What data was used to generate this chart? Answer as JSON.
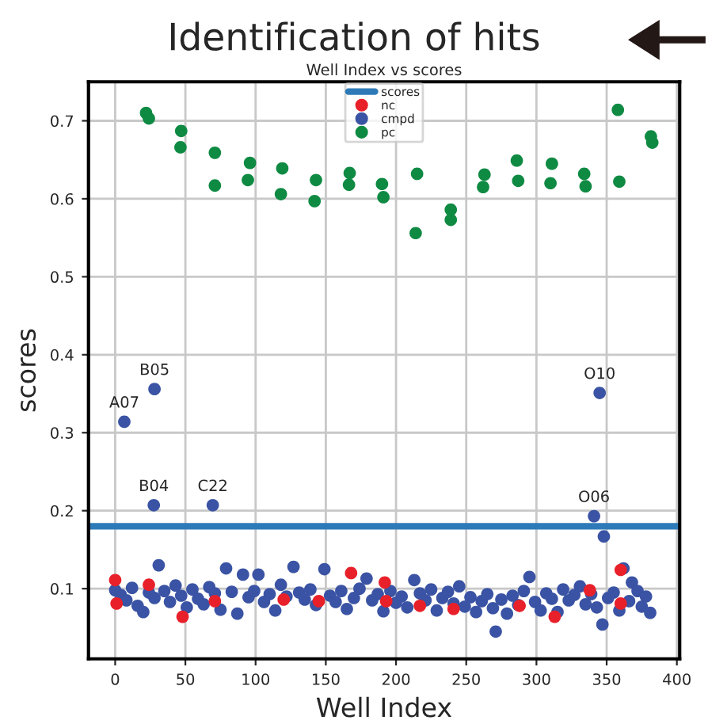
{
  "chart_data": {
    "type": "scatter",
    "title": "Identification of hits",
    "subtitle": "Well Index vs scores",
    "xlabel": "Well Index",
    "ylabel": "scores",
    "xlim": [
      -19,
      402
    ],
    "ylim": [
      0.01,
      0.75
    ],
    "xticks": [
      0,
      50,
      100,
      150,
      200,
      250,
      300,
      350,
      400
    ],
    "yticks": [
      0.1,
      0.2,
      0.3,
      0.4,
      0.5,
      0.6,
      0.7
    ],
    "grid": true,
    "legend": "top",
    "marker": "circle",
    "series": [
      {
        "name": "scores",
        "type": "line",
        "marker": "none",
        "color": "#2e7ab8",
        "x": [
          -19,
          402
        ],
        "values": [
          0.18,
          0.18
        ]
      },
      {
        "name": "nc",
        "color": "#e8202a",
        "x": [
          0,
          1,
          24,
          48,
          71,
          120,
          145,
          168,
          192,
          193,
          217,
          241,
          288,
          313,
          338,
          360,
          360
        ],
        "values": [
          0.111,
          0.081,
          0.105,
          0.064,
          0.084,
          0.086,
          0.084,
          0.12,
          0.108,
          0.084,
          0.078,
          0.074,
          0.078,
          0.064,
          0.098,
          0.081,
          0.124
        ]
      },
      {
        "name": "cmpd",
        "color": "#3a53a4",
        "x": [
          6.5,
          28,
          27.5,
          69.5,
          345,
          341,
          348,
          0,
          4,
          8,
          12,
          16,
          20,
          24,
          28,
          31,
          35,
          39,
          43,
          47,
          51,
          55,
          59,
          63,
          67,
          71,
          75,
          79,
          83,
          87,
          91,
          95,
          99,
          102,
          106,
          110,
          114,
          118,
          122,
          127,
          131,
          135,
          139,
          143,
          149,
          153,
          157,
          161,
          165,
          170,
          174,
          179,
          183,
          187,
          191,
          196,
          200,
          204,
          208,
          213,
          217,
          221,
          225,
          229,
          233,
          237,
          241,
          245,
          249,
          253,
          257,
          261,
          265,
          269,
          271,
          275,
          279,
          283,
          287,
          291,
          295,
          299,
          303,
          307,
          311,
          315,
          319,
          323,
          327,
          331,
          335,
          339,
          343,
          347,
          351,
          355,
          359,
          362,
          366,
          368,
          372,
          375,
          378,
          381
        ],
        "values": [
          0.314,
          0.356,
          0.207,
          0.207,
          0.351,
          0.193,
          0.167,
          0.098,
          0.092,
          0.085,
          0.101,
          0.078,
          0.07,
          0.095,
          0.088,
          0.13,
          0.097,
          0.083,
          0.104,
          0.091,
          0.076,
          0.099,
          0.087,
          0.08,
          0.102,
          0.094,
          0.073,
          0.126,
          0.096,
          0.068,
          0.118,
          0.089,
          0.097,
          0.118,
          0.083,
          0.093,
          0.072,
          0.105,
          0.09,
          0.128,
          0.095,
          0.086,
          0.099,
          0.079,
          0.125,
          0.091,
          0.083,
          0.097,
          0.074,
          0.088,
          0.1,
          0.113,
          0.085,
          0.093,
          0.071,
          0.097,
          0.082,
          0.09,
          0.076,
          0.111,
          0.094,
          0.085,
          0.099,
          0.072,
          0.088,
          0.096,
          0.081,
          0.103,
          0.077,
          0.089,
          0.07,
          0.084,
          0.093,
          0.075,
          0.045,
          0.086,
          0.068,
          0.091,
          0.079,
          0.097,
          0.115,
          0.083,
          0.072,
          0.094,
          0.087,
          0.07,
          0.099,
          0.085,
          0.092,
          0.103,
          0.08,
          0.093,
          0.076,
          0.054,
          0.088,
          0.095,
          0.072,
          0.126,
          0.084,
          0.108,
          0.097,
          0.077,
          0.09,
          0.069
        ]
      },
      {
        "name": "pc",
        "color": "#0f8a43",
        "x": [
          22,
          24,
          47,
          46.5,
          71,
          71,
          96,
          94.5,
          119,
          118,
          143,
          142,
          167,
          166.5,
          190,
          191,
          215,
          214,
          239,
          239,
          263,
          262,
          286,
          287,
          311,
          310,
          334,
          335,
          358,
          359,
          381.5,
          382.5
        ],
        "values": [
          0.71,
          0.703,
          0.687,
          0.666,
          0.659,
          0.617,
          0.646,
          0.624,
          0.639,
          0.606,
          0.624,
          0.597,
          0.633,
          0.618,
          0.619,
          0.602,
          0.632,
          0.556,
          0.586,
          0.573,
          0.631,
          0.615,
          0.649,
          0.623,
          0.645,
          0.62,
          0.632,
          0.616,
          0.714,
          0.622,
          0.68,
          0.672
        ]
      }
    ],
    "annotations": [
      {
        "text": "A07",
        "x": 6.5,
        "y": 0.314
      },
      {
        "text": "B05",
        "x": 28,
        "y": 0.356
      },
      {
        "text": "B04",
        "x": 27.5,
        "y": 0.207
      },
      {
        "text": "C22",
        "x": 69.5,
        "y": 0.207
      },
      {
        "text": "O10",
        "x": 345,
        "y": 0.351
      },
      {
        "text": "O06",
        "x": 341,
        "y": 0.193
      }
    ]
  }
}
